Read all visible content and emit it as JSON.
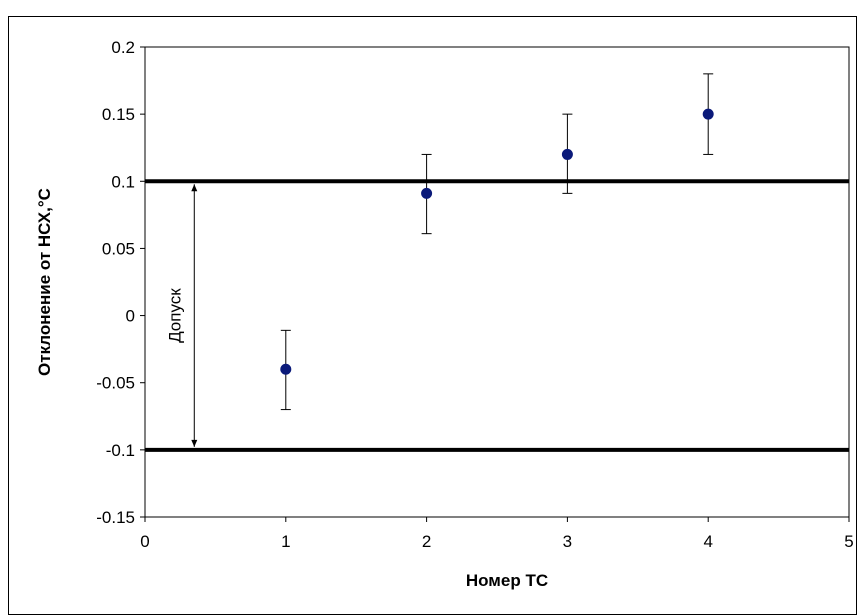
{
  "chart_data": {
    "type": "scatter",
    "title": "",
    "xlabel": "Номер ТС",
    "ylabel": "Отклонение от НСХ,°С",
    "xlim": [
      0,
      5
    ],
    "ylim": [
      -0.15,
      0.2
    ],
    "x_ticks": [
      0,
      1,
      2,
      3,
      4,
      5
    ],
    "y_ticks": [
      0.2,
      0.15,
      0.1,
      0.05,
      0,
      -0.05,
      -0.1,
      -0.15
    ],
    "x_tick_labels": [
      "0",
      "1",
      "2",
      "3",
      "4",
      "5"
    ],
    "y_tick_labels": [
      "0.2",
      "0.15",
      "0.1",
      "0.05",
      "0",
      "-0.05",
      "-0.1",
      "-0.15"
    ],
    "grid": false,
    "legend": "none",
    "series": [
      {
        "x": [
          1,
          2,
          3,
          4
        ],
        "y": [
          -0.04,
          0.091,
          0.12,
          0.15
        ],
        "error_low": [
          -0.07,
          0.061,
          0.091,
          0.12
        ],
        "error_high": [
          -0.011,
          0.12,
          0.15,
          0.18
        ],
        "color": "#0b1a7a"
      }
    ],
    "reference_lines": [
      {
        "y": 0.1,
        "color": "#000000"
      },
      {
        "y": -0.1,
        "color": "#000000"
      }
    ],
    "annotations": [
      {
        "text": "Допуск",
        "x": 0.35,
        "y_from": -0.1,
        "y_to": 0.1
      }
    ]
  }
}
